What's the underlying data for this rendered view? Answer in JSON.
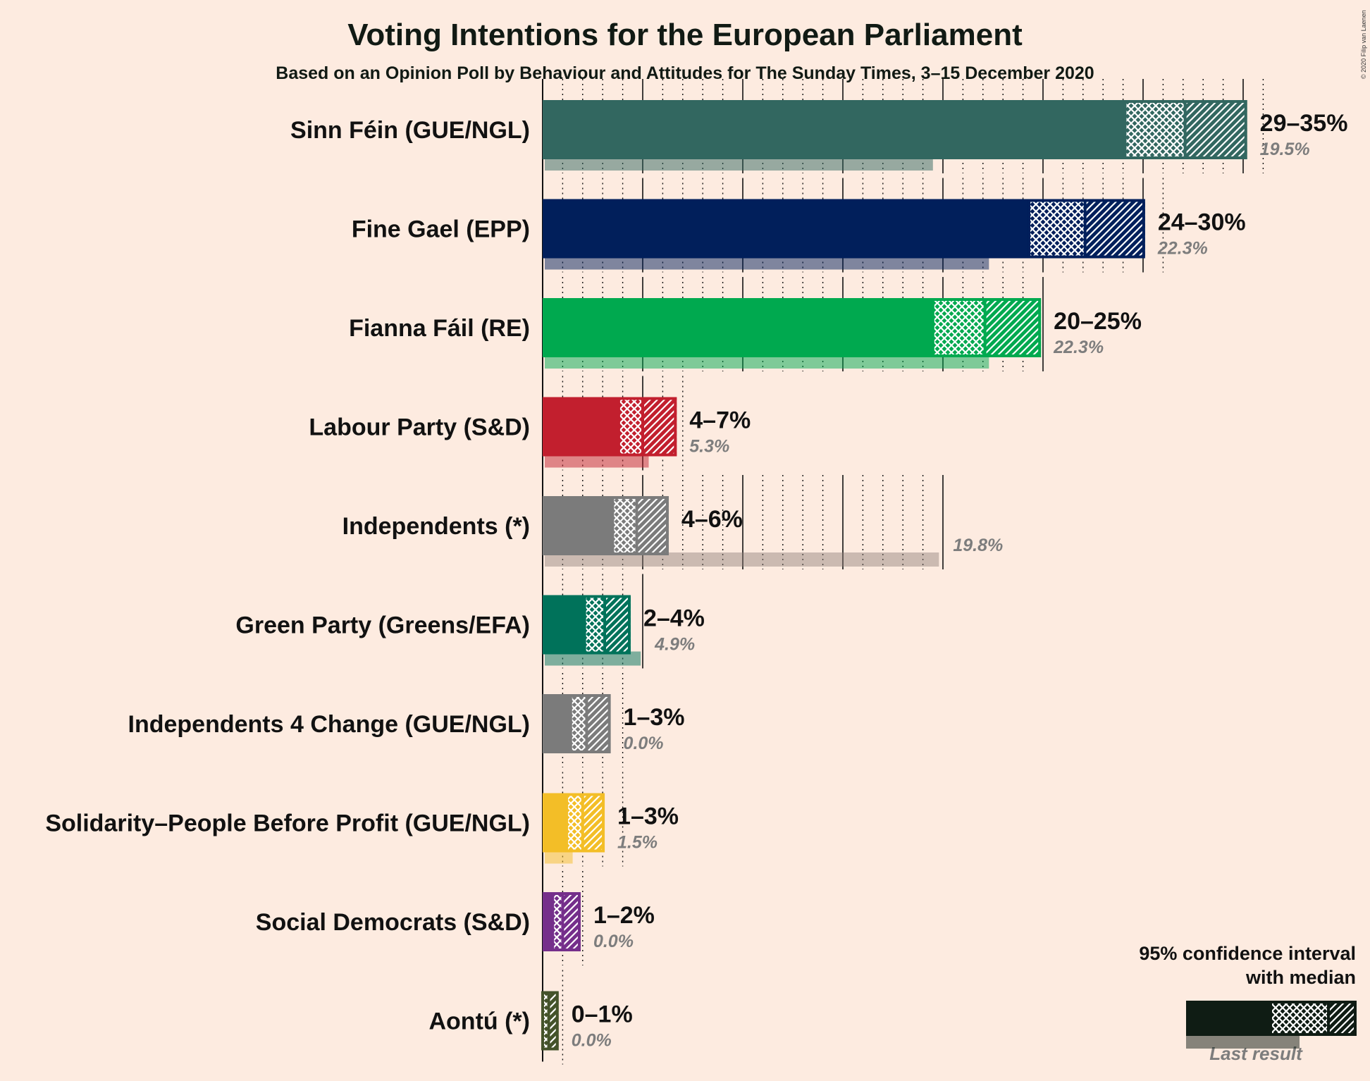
{
  "chart_data": {
    "type": "bar",
    "title": "Voting Intentions for the European Parliament",
    "subtitle": "Based on an Opinion Poll by Behaviour and Attitudes for The Sunday Times, 3–15 December 2020",
    "copyright": "© 2020 Filip van Laenen",
    "xlim": [
      0,
      35
    ],
    "parties": [
      {
        "name": "Sinn Féin (GUE/NGL)",
        "color": "#326760",
        "ci_low": 29.1,
        "median": 32.1,
        "ci_high": 35.2,
        "range_label": "29–35%",
        "last": 19.5,
        "last_label": "19.5%"
      },
      {
        "name": "Fine Gael (EPP)",
        "color": "#011f5b",
        "ci_low": 24.3,
        "median": 27.1,
        "ci_high": 30.1,
        "range_label": "24–30%",
        "last": 22.3,
        "last_label": "22.3%"
      },
      {
        "name": "Fianna Fáil (RE)",
        "color": "#00a94f",
        "ci_low": 19.5,
        "median": 22.1,
        "ci_high": 24.9,
        "range_label": "20–25%",
        "last": 22.3,
        "last_label": "22.3%"
      },
      {
        "name": "Labour Party (S&D)",
        "color": "#c21f2e",
        "ci_low": 3.8,
        "median": 5.0,
        "ci_high": 6.7,
        "range_label": "4–7%",
        "last": 5.3,
        "last_label": "5.3%"
      },
      {
        "name": "Independents (*)",
        "color": "#7b7b7b",
        "ci_low": 3.5,
        "median": 4.7,
        "ci_high": 6.3,
        "range_label": "4–6%",
        "last": 19.8,
        "last_label": "19.8%"
      },
      {
        "name": "Green Party (Greens/EFA)",
        "color": "#00725a",
        "ci_low": 2.1,
        "median": 3.1,
        "ci_high": 4.4,
        "range_label": "2–4%",
        "last": 4.9,
        "last_label": "4.9%"
      },
      {
        "name": "Independents 4 Change (GUE/NGL)",
        "color": "#7b7b7b",
        "ci_low": 1.4,
        "median": 2.2,
        "ci_high": 3.4,
        "range_label": "1–3%",
        "last": 0.0,
        "last_label": "0.0%"
      },
      {
        "name": "Solidarity–People Before Profit (GUE/NGL)",
        "color": "#f3be27",
        "ci_low": 1.2,
        "median": 2.0,
        "ci_high": 3.1,
        "range_label": "1–3%",
        "last": 1.5,
        "last_label": "1.5%"
      },
      {
        "name": "Social Democrats (S&D)",
        "color": "#752f8b",
        "ci_low": 0.5,
        "median": 1.0,
        "ci_high": 1.9,
        "range_label": "1–2%",
        "last": 0.0,
        "last_label": "0.0%"
      },
      {
        "name": "Aontú (*)",
        "color": "#44532a",
        "ci_low": 0.0,
        "median": 0.3,
        "ci_high": 0.8,
        "range_label": "0–1%",
        "last": 0.0,
        "last_label": "0.0%"
      }
    ],
    "legend": {
      "line1": "95% confidence interval",
      "line2": "with median",
      "last_result": "Last result",
      "color": "#0f1c14"
    }
  }
}
